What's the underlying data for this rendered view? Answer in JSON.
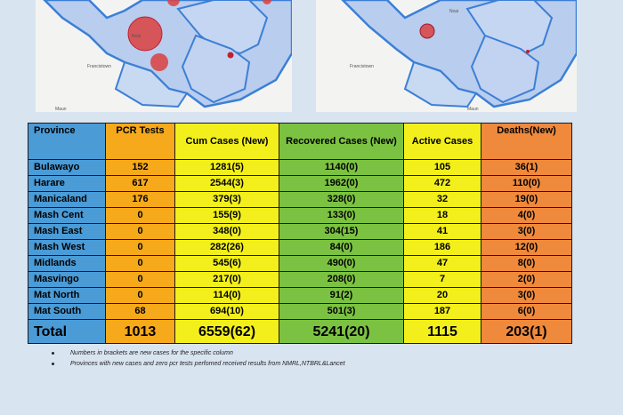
{
  "maps": {
    "left_labels": [
      "Francistown",
      "Nxai",
      "Maun"
    ],
    "right_labels": [
      "Francistown",
      "Nxai",
      "Maun"
    ]
  },
  "table": {
    "headers": {
      "province": "Province",
      "pcr": "PCR Tests",
      "cum": "Cum Cases (New)",
      "recovered": "Recovered Cases (New)",
      "active": "Active Cases",
      "deaths": "Deaths(New)"
    },
    "rows": [
      {
        "province": "Bulawayo",
        "pcr": "152",
        "cum": "1281(5)",
        "recovered": "1140(0)",
        "active": "105",
        "deaths": "36(1)"
      },
      {
        "province": "Harare",
        "pcr": "617",
        "cum": "2544(3)",
        "recovered": "1962(0)",
        "active": "472",
        "deaths": "110(0)"
      },
      {
        "province": "Manicaland",
        "pcr": "176",
        "cum": "379(3)",
        "recovered": "328(0)",
        "active": "32",
        "deaths": "19(0)"
      },
      {
        "province": "Mash Cent",
        "pcr": "0",
        "cum": "155(9)",
        "recovered": "133(0)",
        "active": "18",
        "deaths": "4(0)"
      },
      {
        "province": "Mash East",
        "pcr": "0",
        "cum": "348(0)",
        "recovered": "304(15)",
        "active": "41",
        "deaths": "3(0)"
      },
      {
        "province": "Mash West",
        "pcr": "0",
        "cum": "282(26)",
        "recovered": "84(0)",
        "active": "186",
        "deaths": "12(0)"
      },
      {
        "province": "Midlands",
        "pcr": "0",
        "cum": "545(6)",
        "recovered": "490(0)",
        "active": "47",
        "deaths": "8(0)"
      },
      {
        "province": "Masvingo",
        "pcr": "0",
        "cum": "217(0)",
        "recovered": "208(0)",
        "active": "7",
        "deaths": "2(0)"
      },
      {
        "province": "Mat North",
        "pcr": "0",
        "cum": "114(0)",
        "recovered": "91(2)",
        "active": "20",
        "deaths": "3(0)"
      },
      {
        "province": "Mat South",
        "pcr": "68",
        "cum": "694(10)",
        "recovered": "501(3)",
        "active": "187",
        "deaths": "6(0)"
      }
    ],
    "total": {
      "province": "Total",
      "pcr": "1013",
      "cum": "6559(62)",
      "recovered": "5241(20)",
      "active": "1115",
      "deaths": "203(1)"
    }
  },
  "notes": [
    "Numbers in brackets are new cases for the specific column",
    "Provinces with new cases and zero pcr tests perfomed received results from NMRL,NTBRL&Lancet"
  ],
  "colors": {
    "province": "#4a9bd6",
    "pcr": "#f6a91a",
    "cum": "#f2ef1c",
    "recovered": "#7cc242",
    "active": "#f2ef1c",
    "deaths": "#ef8a3c"
  }
}
